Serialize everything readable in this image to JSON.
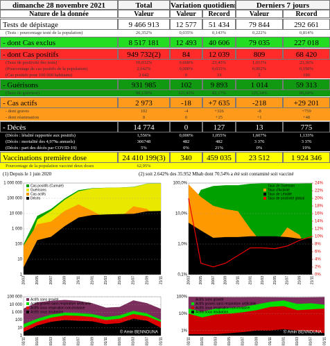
{
  "table": {
    "date": "dimanche 28 novembre 2021",
    "headers": [
      "Total",
      "Variation quotidienne",
      "Derniers 7 jours"
    ],
    "subheaders": [
      "Nature de la donnée",
      "Valeur",
      "Valeur",
      "Record",
      "Valeur",
      "Record"
    ],
    "rows": [
      {
        "label": "Tests de dépistage",
        "color": "#ffffff",
        "text_color": "#000000",
        "cells": [
          "9 466 913",
          "12 577",
          "51 434",
          "79 844",
          "292 661"
        ],
        "sub": [
          {
            "label": "(Tests : pourcentage testé de la population)",
            "cells": [
              "26,352%",
              "0,035%",
              "0,143%",
              "0,222%",
              "0,814%"
            ]
          }
        ]
      },
      {
        "label": "- dont Cas exclus",
        "color": "#22dd22",
        "text_color": "#000000",
        "cells": [
          "8 517 181",
          "12 493",
          "40 606",
          "79 035",
          "227 018"
        ],
        "sub": []
      },
      {
        "label": "- dont Cas positifs",
        "color": "#ff2a2a",
        "text_color": "#000000",
        "cells": [
          "949 732(2)",
          "84",
          "12 039",
          "809",
          "68 420"
        ],
        "sub": [
          {
            "label": "(Taux de positivité des tests)",
            "cells": [
              "10,032%",
              "0,668%",
              "23,43%",
              "1,013%",
              "23,36%"
            ]
          },
          {
            "label": "(Pourcentage de cas positifs de la population)",
            "cells": [
              "2,642%",
              "0,000%",
              "0,033%",
              "0,002%",
              "0,190%"
            ]
          },
          {
            "label": "(Cas positifs pour 100 000 habitants)",
            "cells": [
              "2 642",
              "0",
              "33",
              "2",
              "190"
            ]
          }
        ]
      },
      {
        "label": "- Guérisons",
        "color": "#119911",
        "text_color": "#000000",
        "cells": [
          "931 985",
          "102",
          "9 893",
          "1 014",
          "59 313"
        ],
        "sub": [
          {
            "label": "(Taux de guérison)",
            "cells": [
              "98,130%",
              "121,43%",
              "82,17%",
              "125,34%",
              "86,69%"
            ]
          }
        ]
      },
      {
        "label": "- Cas actifs",
        "color": "#ff9a1a",
        "text_color": "#000000",
        "cells": [
          "2 973",
          "-18",
          "+7 635",
          "-218",
          "+29 201"
        ],
        "sub": [
          {
            "label": "- dont graves",
            "cells": [
              "102",
              "-4",
              "+326",
              "-8",
              "+759"
            ]
          },
          {
            "label": "- dont réanimation",
            "cells": [
              "8",
              "0",
              "+25",
              "+1",
              "+48"
            ]
          }
        ]
      },
      {
        "label": "- Décès",
        "color": "#000000",
        "text_color": "#ffffff",
        "cells": [
          "14 774",
          "0",
          "127",
          "13",
          "775"
        ],
        "sub": [
          {
            "label": "(Décès : létalité rapportée aux positifs)",
            "cells": [
              "1,556%",
              "0,000%",
              "1,055%",
              "1,607%",
              "1,133%"
            ]
          },
          {
            "label": "(Décès : mortalité des 4,97‰ annuels)",
            "cells": [
              "306748",
              "482",
              "482",
              "3 376",
              "3 376"
            ]
          },
          {
            "label": "(Décès : part des décès par COVID-19)",
            "cells": [
              "5%",
              "0%",
              "21%",
              "0%",
              "19%"
            ]
          }
        ]
      },
      {
        "label": "Vaccinations première dose",
        "color": "#ffff00",
        "text_color": "#000000",
        "cells": [
          "24 410 199(3)",
          "340",
          "459 035",
          "23 512",
          "1 924 346"
        ],
        "sub": [
          {
            "label": "Pourcentage de la population vacciné deux doses",
            "cells": [
              "62,95%"
            ]
          }
        ]
      }
    ]
  },
  "footnotes": [
    "(1) Depuis le 1 juin 2020",
    "(2) soit 2.642% des 35.952 Mhab dont 70.54% a été soit contaminé soit vacciné"
  ],
  "chart_data": [
    {
      "type": "area",
      "log_scale": true,
      "grid": true,
      "legend": "upper left",
      "categories": [
        "20/03",
        "20/05",
        "20/07",
        "20/09",
        "20/11",
        "21/01",
        "21/03",
        "21/05",
        "21/07",
        "21/09",
        "21/11"
      ],
      "ylim": [
        1,
        1000000
      ],
      "yticks": [
        1,
        10,
        100,
        {
          "value": 1000,
          "label": "1 000"
        },
        {
          "value": 10000,
          "label": "10 000"
        },
        {
          "value": 100000,
          "label": "100 000"
        },
        {
          "value": 1000000,
          "label": "1 000 000"
        }
      ],
      "series": [
        {
          "name": "Cas positifs (Cumulé)",
          "color": "#00a000",
          "values": [
            100,
            7000,
            20000,
            100000,
            340000,
            460000,
            495000,
            515000,
            560000,
            930000,
            949000
          ]
        },
        {
          "name": "Guérisons",
          "color": "#e8e800",
          "values": [
            10,
            4000,
            15000,
            80000,
            290000,
            440000,
            485000,
            505000,
            540000,
            900000,
            931000
          ]
        },
        {
          "name": "Cas actifs",
          "color": "#ff9900",
          "values": [
            80,
            2000,
            3000,
            15000,
            40000,
            15000,
            5000,
            5000,
            30000,
            20000,
            2973
          ]
        },
        {
          "name": "Décès",
          "color": "#000000",
          "values": [
            3,
            180,
            300,
            1500,
            5500,
            8000,
            8800,
            9200,
            9600,
            14000,
            14774
          ]
        }
      ]
    },
    {
      "type": "area",
      "log_scale": true,
      "grid": true,
      "legend": "upper right",
      "categories": [
        "20/03",
        "20/05",
        "20/07",
        "20/09",
        "20/11",
        "21/01",
        "21/03",
        "21/05",
        "21/07",
        "21/09",
        "21/11"
      ],
      "ylim": [
        0.1,
        100
      ],
      "yticks": [
        {
          "value": 0.1,
          "label": "0,1%"
        },
        {
          "value": 1,
          "label": "1,0%"
        },
        {
          "value": 10,
          "label": "10,0%"
        },
        {
          "value": 100,
          "label": "100,0%"
        }
      ],
      "y2lim": [
        0,
        24
      ],
      "y2ticks": [
        {
          "value": 0,
          "label": "0%"
        },
        {
          "value": 2,
          "label": "2%"
        },
        {
          "value": 4,
          "label": "4%"
        },
        {
          "value": 6,
          "label": "6%"
        },
        {
          "value": 8,
          "label": "8%"
        },
        {
          "value": 10,
          "label": "10%"
        },
        {
          "value": 12,
          "label": "12%"
        },
        {
          "value": 14,
          "label": "14%"
        },
        {
          "value": 16,
          "label": "16%"
        },
        {
          "value": 18,
          "label": "18%"
        },
        {
          "value": 20,
          "label": "20%"
        },
        {
          "value": 22,
          "label": "22%"
        },
        {
          "value": 24,
          "label": "24%"
        }
      ],
      "series": [
        {
          "name": "Taux de Guérison",
          "color": "#00a000",
          "values": [
            10,
            60,
            80,
            85,
            85,
            95,
            98,
            98,
            96,
            97,
            98.1
          ]
        },
        {
          "name": "Taux d'Activité",
          "color": "#ff9900",
          "values": [
            90,
            35,
            18,
            14,
            12,
            3.2,
            1,
            1,
            3.5,
            2,
            0.31
          ]
        },
        {
          "name": "Taux de Létalité",
          "color": "#000000",
          "values": [
            5,
            2.8,
            1.6,
            1.7,
            1.7,
            1.8,
            1.8,
            1.8,
            1.7,
            1.5,
            1.56
          ]
        },
        {
          "name": "Taux de positivité global",
          "color": "#ee0000",
          "axis": "y2",
          "values": [
            20,
            3,
            2,
            3,
            5,
            7,
            7,
            6.8,
            7.5,
            9,
            10
          ]
        }
      ]
    },
    {
      "type": "area",
      "log_scale": true,
      "grid": true,
      "legend": "upper left",
      "credit": "© Amin BENNOUNA",
      "categories": [
        "02/11",
        "01/01",
        "01/03",
        "01/05",
        "01/07",
        "01/09",
        "01/11",
        "01/01",
        "01/03",
        "01/07",
        "01/11"
      ],
      "ylim": [
        1,
        100000
      ],
      "yticks": [
        1,
        10,
        100,
        {
          "value": 1000,
          "label": "1 000"
        },
        {
          "value": 10000,
          "label": "10 000"
        },
        {
          "value": 100000,
          "label": "100 000"
        }
      ],
      "series": [
        {
          "name": "Actifs sans gravité",
          "color": "#7b2d5b",
          "values": [
            3000,
            20000,
            30000,
            40000,
            30000,
            15000,
            4000,
            5000,
            35000,
            15000,
            2800
          ]
        },
        {
          "name": "Actifs graves sans respiration artificielle",
          "color": "#00dd00",
          "values": [
            30,
            150,
            500,
            900,
            800,
            600,
            250,
            400,
            1500,
            700,
            102
          ]
        },
        {
          "name": "Actifs sous respiration non-invasive",
          "color": "#e00000",
          "values": [
            10,
            60,
            200,
            400,
            350,
            250,
            100,
            150,
            600,
            300,
            60
          ]
        },
        {
          "name": "Actifs sous intubation",
          "color": "#000000",
          "values": [
            3,
            20,
            60,
            100,
            80,
            70,
            30,
            40,
            150,
            80,
            10
          ]
        }
      ]
    },
    {
      "type": "area",
      "log_scale": true,
      "grid": true,
      "legend": "upper left",
      "credit": "© Amin BENNOUNA",
      "categories": [
        "02/11",
        "01/01",
        "01/03",
        "01/05",
        "01/07",
        "01/09",
        "01/11",
        "01/01",
        "01/03",
        "01/07",
        "01/11"
      ],
      "ylim": [
        0.5,
        100
      ],
      "yticks": [
        {
          "value": 1,
          "label": "1%"
        },
        {
          "value": 10,
          "label": "10%"
        },
        {
          "value": 100,
          "label": "100%"
        }
      ],
      "series": [
        {
          "name": "Actifs sans gravité",
          "color": "#7b2d5b",
          "values": [
            99,
            97,
            95,
            94,
            94,
            95,
            94,
            93,
            92,
            93,
            95
          ]
        },
        {
          "name": "Actifs graves sans respiration artificielle",
          "color": "#00dd00",
          "values": [
            20,
            13,
            20,
            22,
            25,
            35,
            50,
            60,
            38,
            41,
            34
          ]
        },
        {
          "name": "Actifs sous respiration non-invasive",
          "color": "#cc0000",
          "values": [
            10,
            6,
            9,
            10,
            12,
            16,
            25,
            28,
            16,
            18,
            20
          ]
        },
        {
          "name": "Actifs sous intubation",
          "color": "#000000",
          "values": [
            0.6,
            0.6,
            0.6,
            0.7,
            0.8,
            1,
            1,
            1.2,
            1,
            0.9,
            0.7
          ]
        }
      ]
    }
  ]
}
